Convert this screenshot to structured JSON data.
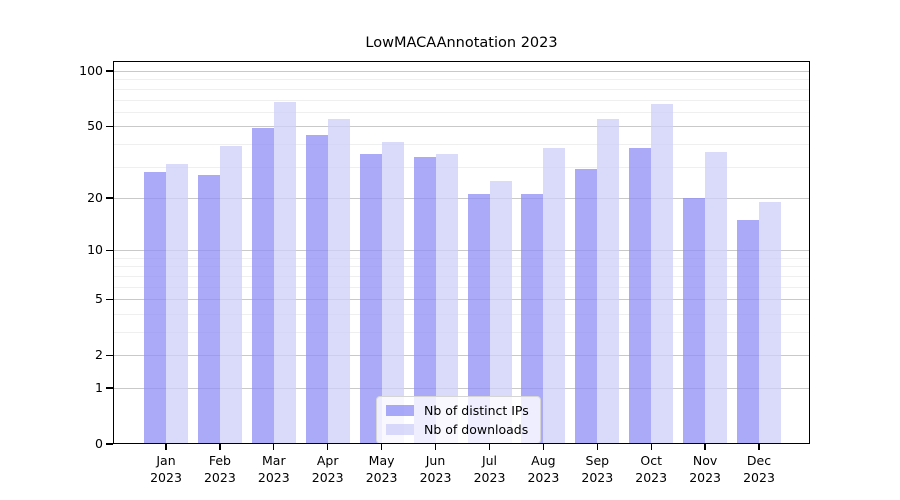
{
  "title": "LowMACAAnnotation 2023",
  "chart_data": {
    "type": "bar",
    "title": "LowMACAAnnotation 2023",
    "categories": [
      "Jan",
      "Feb",
      "Mar",
      "Apr",
      "May",
      "Jun",
      "Jul",
      "Aug",
      "Sep",
      "Oct",
      "Nov",
      "Dec"
    ],
    "year_label": "2023",
    "series": [
      {
        "name": "Nb of distinct IPs",
        "color": "rgba(141,141,247,0.75)",
        "values": [
          28,
          27,
          49,
          45,
          35,
          34,
          21,
          21,
          29,
          38,
          20,
          15
        ]
      },
      {
        "name": "Nb of downloads",
        "color": "rgba(206,206,249,0.75)",
        "values": [
          31,
          39,
          68,
          55,
          41,
          35,
          25,
          38,
          55,
          66,
          36,
          19
        ]
      }
    ],
    "xlabel": "",
    "ylabel": "",
    "y_scale": "log1p",
    "y_ticks": [
      0,
      1,
      2,
      5,
      10,
      20,
      50,
      100
    ],
    "y_minor_gridlines": [
      3,
      4,
      6,
      7,
      8,
      9,
      30,
      40,
      60,
      70,
      80,
      90
    ],
    "ylim": [
      0,
      113
    ],
    "grid": true,
    "legend_position": "lower center"
  },
  "colors": {
    "bar_distinct_ips": "rgba(141,141,247,0.75)",
    "bar_downloads": "rgba(206,206,249,0.75)",
    "grid_major": "#c9c9c9",
    "grid_minor": "#efefef",
    "axis": "#000000",
    "background": "#ffffff"
  }
}
